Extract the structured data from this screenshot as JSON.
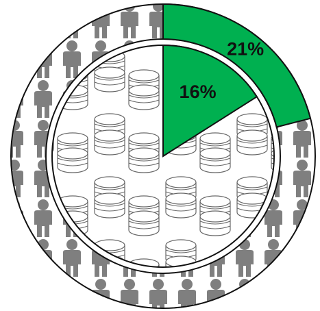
{
  "chart_data": [
    {
      "type": "pie",
      "values": [
        21
      ],
      "value_labels": [
        "21%"
      ],
      "color": "#00b050"
    },
    {
      "type": "pie",
      "values": [
        16
      ],
      "value_labels": [
        "16%"
      ],
      "color": "#00b050"
    }
  ]
}
